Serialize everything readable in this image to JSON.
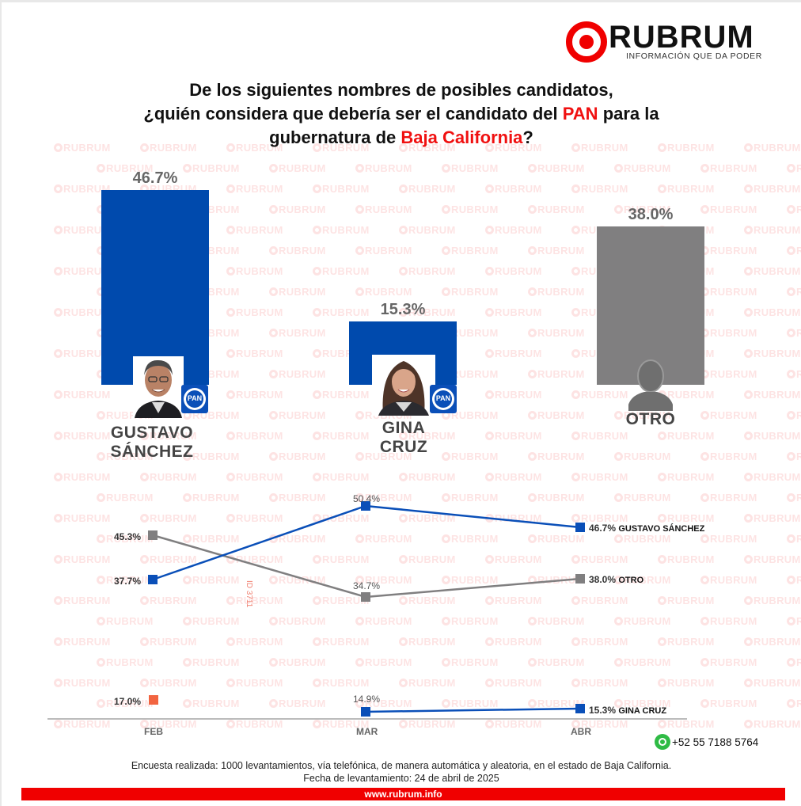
{
  "logo": {
    "wordmark": "RUBRUM",
    "tagline": "INFORMACIÓN QUE DA PODER",
    "brand_color": "#f00000"
  },
  "title": {
    "line1": "De los siguientes nombres de posibles candidatos,",
    "line2_pre": "¿quién considera que debería ser el candidato del ",
    "line2_highlight": "PAN",
    "line2_post": " para la",
    "line3_pre": "gubernatura de ",
    "line3_highlight": "Baja California",
    "line3_post": "?"
  },
  "candidates": [
    {
      "name_line1": "GUSTAVO",
      "name_line2": "SÁNCHEZ",
      "value_label": "46.7%",
      "party": "PAN",
      "color": "#004aad",
      "photo": "gustavo-sanchez-photo"
    },
    {
      "name_line1": "GINA",
      "name_line2": "CRUZ",
      "value_label": "15.3%",
      "party": "PAN",
      "color": "#004aad",
      "photo": "gina-cruz-photo"
    },
    {
      "name_line1": "OTRO",
      "name_line2": "",
      "value_label": "38.0%",
      "party": "",
      "color": "#807f80",
      "photo": "generic-person-silhouette"
    }
  ],
  "trend": {
    "months": [
      "FEB",
      "MAR",
      "ABR"
    ],
    "gustavo": {
      "labels": [
        "37.7%",
        "50.4%",
        "46.7%"
      ],
      "name": "GUSTAVO SÁNCHEZ"
    },
    "otro": {
      "labels": [
        "45.3%",
        "34.7%",
        "38.0%"
      ],
      "name": "OTRO"
    },
    "gina": {
      "labels": [
        "17.0%",
        "14.9%",
        "15.3%"
      ],
      "name": "GINA CRUZ"
    },
    "id_tag": "ID 3711"
  },
  "contact": {
    "phone": "+52 55 7188 5764",
    "icon": "whatsapp-icon"
  },
  "footer": {
    "methodology": "Encuesta realizada: 1000 levantamientos, vía telefónica, de manera automática y aleatoria, en el estado de Baja California.",
    "date": "Fecha de levantamiento: 24 de abril de 2025",
    "website": "www.rubrum.info"
  },
  "watermark_text": "RUBRUM",
  "chart_data": [
    {
      "type": "bar",
      "title": "De los siguientes nombres de posibles candidatos, ¿quién considera que debería ser el candidato del PAN para la gubernatura de Baja California?",
      "categories": [
        "GUSTAVO SÁNCHEZ",
        "GINA CRUZ",
        "OTRO"
      ],
      "values": [
        46.7,
        15.3,
        38.0
      ],
      "colors": [
        "#004aad",
        "#004aad",
        "#807f80"
      ],
      "xlabel": "",
      "ylabel": "%",
      "ylim": [
        0,
        50
      ],
      "grid": false
    },
    {
      "type": "line",
      "title": "Tendencia",
      "x": [
        "FEB",
        "MAR",
        "ABR"
      ],
      "series": [
        {
          "name": "GUSTAVO SÁNCHEZ",
          "values": [
            37.7,
            50.4,
            46.7
          ],
          "color": "#004aad"
        },
        {
          "name": "OTRO",
          "values": [
            45.3,
            34.7,
            38.0
          ],
          "color": "#807f80"
        },
        {
          "name": "GINA CRUZ",
          "values": [
            17.0,
            14.9,
            15.3
          ],
          "color": "#004aad",
          "note": "FEB point shown in orange (#f26440) without connecting line"
        }
      ],
      "legend_position": "inline-right",
      "grid": false
    }
  ]
}
